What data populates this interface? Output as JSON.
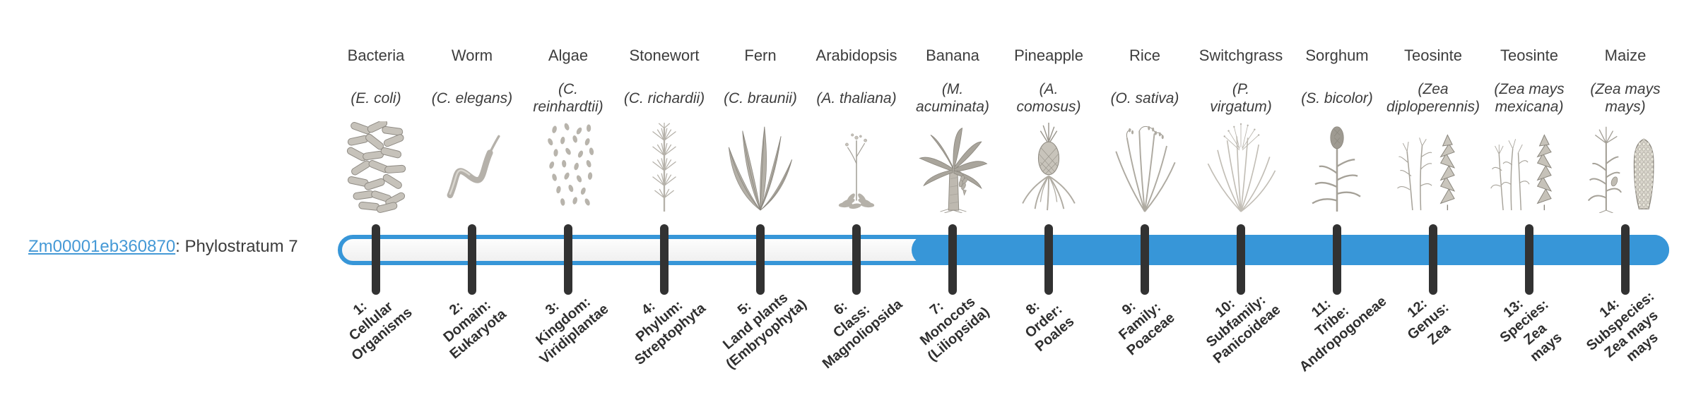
{
  "gene": {
    "id": "Zm00001eb360870",
    "suffix": ": Phylostratum 7",
    "phylostratum": 7
  },
  "timeline": {
    "bar_color": "#3796d8",
    "track_fill": "#f5f5f5",
    "tick_color": "#323232",
    "link_color": "#4599d6",
    "filled_from_stratum": 7,
    "total_strata": 14
  },
  "columns": [
    {
      "name": "Bacteria",
      "scientific": "(E. coli)",
      "icon": "bacteria-illustration",
      "stratum_label": "1:\nCellular\nOrganisms"
    },
    {
      "name": "Worm",
      "scientific": "(C. elegans)",
      "icon": "worm-illustration",
      "stratum_label": "2:\nDomain:\nEukaryota"
    },
    {
      "name": "Algae",
      "scientific": "(C.\nreinhardtii)",
      "icon": "algae-illustration",
      "stratum_label": "3:\nKingdom:\nViridiplantae"
    },
    {
      "name": "Stonewort",
      "scientific": "(C. richardii)",
      "icon": "stonewort-illustration",
      "stratum_label": "4:\nPhylum:\nStreptophyta"
    },
    {
      "name": "Fern",
      "scientific": "(C. braunii)",
      "icon": "fern-illustration",
      "stratum_label": "5:\nLand plants\n(Embryophyta)"
    },
    {
      "name": "Arabidopsis",
      "scientific": "(A. thaliana)",
      "icon": "arabidopsis-illustration",
      "stratum_label": "6:\nClass:\nMagnoliopsida"
    },
    {
      "name": "Banana",
      "scientific": "(M.\nacuminata)",
      "icon": "banana-plant-illustration",
      "stratum_label": "7:\nMonocots\n(Liliopsida)"
    },
    {
      "name": "Pineapple",
      "scientific": "(A.\ncomosus)",
      "icon": "pineapple-illustration",
      "stratum_label": "8:\nOrder:\nPoales"
    },
    {
      "name": "Rice",
      "scientific": "(O. sativa)",
      "icon": "rice-illustration",
      "stratum_label": "9:\nFamily:\nPoaceae"
    },
    {
      "name": "Switchgrass",
      "scientific": "(P.\nvirgatum)",
      "icon": "switchgrass-illustration",
      "stratum_label": "10:\nSubfamily:\nPanicoideae"
    },
    {
      "name": "Sorghum",
      "scientific": "(S. bicolor)",
      "icon": "sorghum-illustration",
      "stratum_label": "11:\nTribe:\nAndropogoneae"
    },
    {
      "name": "Teosinte",
      "scientific": "(Zea\ndiploperennis)",
      "icon": "teosinte-diploperennis-illustration",
      "stratum_label": "12:\nGenus:\nZea"
    },
    {
      "name": "Teosinte",
      "scientific": "(Zea mays\nmexicana)",
      "icon": "teosinte-mexicana-illustration",
      "stratum_label": "13:\nSpecies:\nZea\nmays"
    },
    {
      "name": "Maize",
      "scientific": "(Zea mays\nmays)",
      "icon": "maize-illustration",
      "stratum_label": "14:\nSubspecies:\nZea mays\nmays"
    }
  ]
}
